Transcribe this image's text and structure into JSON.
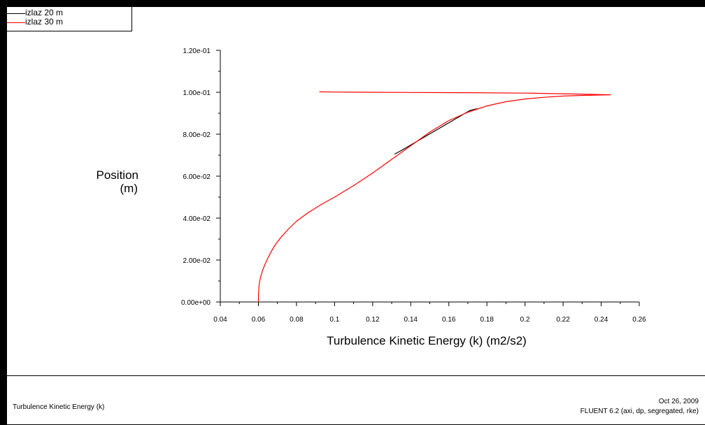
{
  "legend": [
    {
      "label": "izlaz 20 m",
      "color": "#000000"
    },
    {
      "label": "izlaz 30 m",
      "color": "#ff0000"
    }
  ],
  "footer": {
    "left_text": "Turbulence Kinetic Energy (k)",
    "date": "Oct 26, 2009",
    "solver_info": "FLUENT 6.2 (axi, dp, segregated, rke)"
  },
  "chart_data": {
    "type": "line",
    "title": "",
    "xlabel": "Turbulence Kinetic Energy (k) (m2/s2)",
    "ylabel_lines": [
      "Position",
      "(m)"
    ],
    "xlim": [
      0.04,
      0.26
    ],
    "ylim": [
      0,
      0.12
    ],
    "xticks": [
      0.04,
      0.06,
      0.08,
      0.1,
      0.12,
      0.14,
      0.16,
      0.18,
      0.2,
      0.22,
      0.24,
      0.26
    ],
    "xtick_labels": [
      "0.04",
      "0.06",
      "0.08",
      "0.1",
      "0.12",
      "0.14",
      "0.16",
      "0.18",
      "0.2",
      "0.22",
      "0.24",
      "0.26"
    ],
    "yticks": [
      0,
      0.02,
      0.04,
      0.06,
      0.08,
      0.1,
      0.12
    ],
    "ytick_labels": [
      "0.00e+00",
      "2.00e-02",
      "4.00e-02",
      "6.00e-02",
      "8.00e-02",
      "1.00e-01",
      "1.20e-01"
    ],
    "grid": false,
    "legend_position": "top-left",
    "series": [
      {
        "name": "izlaz 20 m",
        "color": "#000000",
        "points": [
          [
            0.1315,
            0.0705
          ],
          [
            0.135,
            0.0722
          ],
          [
            0.171,
            0.0913
          ],
          [
            0.175,
            0.0922
          ]
        ]
      },
      {
        "name": "izlaz 30 m",
        "color": "#ff0000",
        "points": [
          [
            0.06,
            0.0
          ],
          [
            0.06,
            0.003
          ],
          [
            0.0602,
            0.006
          ],
          [
            0.0605,
            0.009
          ],
          [
            0.0612,
            0.012
          ],
          [
            0.0622,
            0.015
          ],
          [
            0.0635,
            0.018
          ],
          [
            0.065,
            0.021
          ],
          [
            0.067,
            0.0245
          ],
          [
            0.069,
            0.0275
          ],
          [
            0.072,
            0.031
          ],
          [
            0.076,
            0.035
          ],
          [
            0.08,
            0.0385
          ],
          [
            0.086,
            0.0425
          ],
          [
            0.093,
            0.0465
          ],
          [
            0.1,
            0.05
          ],
          [
            0.11,
            0.0555
          ],
          [
            0.12,
            0.0615
          ],
          [
            0.13,
            0.068
          ],
          [
            0.14,
            0.0745
          ],
          [
            0.15,
            0.081
          ],
          [
            0.16,
            0.0865
          ],
          [
            0.17,
            0.0905
          ],
          [
            0.18,
            0.0935
          ],
          [
            0.19,
            0.0955
          ],
          [
            0.2,
            0.0968
          ],
          [
            0.21,
            0.0976
          ],
          [
            0.22,
            0.0982
          ],
          [
            0.23,
            0.0985
          ],
          [
            0.24,
            0.0987
          ],
          [
            0.245,
            0.0988
          ],
          [
            0.22,
            0.0993
          ],
          [
            0.2,
            0.0996
          ],
          [
            0.17,
            0.0998
          ],
          [
            0.14,
            0.0999
          ],
          [
            0.12,
            0.1
          ],
          [
            0.1,
            0.1001
          ],
          [
            0.092,
            0.1002
          ]
        ]
      }
    ]
  }
}
